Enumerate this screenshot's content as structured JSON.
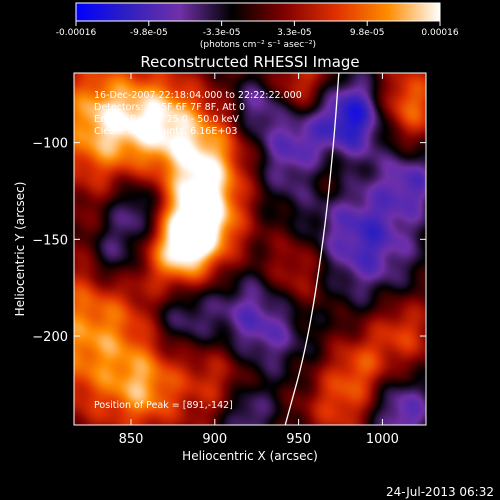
{
  "chart_data": {
    "type": "heatmap",
    "title": "Reconstructed RHESSI Image",
    "xlabel": "Heliocentric X (arcsec)",
    "ylabel": "Heliocentric Y (arcsec)",
    "xlim": [
      816,
      1026
    ],
    "ylim": [
      -246,
      -64
    ],
    "xticks": [
      850,
      900,
      950,
      1000
    ],
    "yticks": [
      -100,
      -150,
      -200
    ],
    "colorbar": {
      "ticks": [
        "-0.00016",
        "-9.8e-05",
        "-3.3e-05",
        "3.3e-05",
        "9.8e-05",
        "0.00016"
      ],
      "unit_label": "(photons cm⁻² s⁻¹ asec⁻²)",
      "range": [
        -0.00016,
        0.00016
      ],
      "colormap": [
        "#0000ff",
        "#3020c0",
        "#7030a8",
        "#000000",
        "#800000",
        "#e03000",
        "#ff8c00",
        "#ffffff"
      ]
    },
    "annotations": [
      "16-Dec-2007 22:18:04.000 to 22:22:22.000",
      "Detectors: 4F 5F 6F 7F 8F, Att 0",
      "Energy Range: 25.0 - 50.0 keV",
      "Clean.  Total counts: 6.16E+03"
    ],
    "peak_label": "Position of Peak = [891,-142]",
    "peak": [
      891,
      -142
    ],
    "limb_curve": [
      [
        942,
        -246
      ],
      [
        955,
        -205
      ],
      [
        965,
        -150
      ],
      [
        971,
        -100
      ],
      [
        974,
        -64
      ]
    ],
    "sources": [
      {
        "x": 835,
        "y": -90,
        "amp": 1.0,
        "s": 22
      },
      {
        "x": 827,
        "y": -200,
        "amp": 0.8,
        "s": 28
      },
      {
        "x": 895,
        "y": -110,
        "amp": 0.9,
        "s": 18
      },
      {
        "x": 891,
        "y": -142,
        "amp": 1.2,
        "s": 16
      },
      {
        "x": 878,
        "y": -158,
        "amp": 0.7,
        "s": 14
      },
      {
        "x": 870,
        "y": -88,
        "amp": 0.7,
        "s": 16
      },
      {
        "x": 858,
        "y": -228,
        "amp": 0.6,
        "s": 15
      },
      {
        "x": 905,
        "y": -222,
        "amp": 0.55,
        "s": 18
      },
      {
        "x": 948,
        "y": -168,
        "amp": 0.5,
        "s": 14
      },
      {
        "x": 968,
        "y": -115,
        "amp": 0.55,
        "s": 13
      },
      {
        "x": 952,
        "y": -72,
        "amp": 0.7,
        "s": 14
      },
      {
        "x": 1015,
        "y": -80,
        "amp": 0.7,
        "s": 14
      },
      {
        "x": 1012,
        "y": -198,
        "amp": 0.5,
        "s": 13
      },
      {
        "x": 975,
        "y": -235,
        "amp": 0.5,
        "s": 14
      },
      {
        "x": 988,
        "y": -215,
        "amp": 0.45,
        "s": 12
      },
      {
        "x": 955,
        "y": -100,
        "amp": -0.8,
        "s": 22
      },
      {
        "x": 985,
        "y": -85,
        "amp": -0.7,
        "s": 14
      },
      {
        "x": 990,
        "y": -150,
        "amp": -0.7,
        "s": 22
      },
      {
        "x": 925,
        "y": -195,
        "amp": -0.7,
        "s": 20
      },
      {
        "x": 855,
        "y": -135,
        "amp": -0.6,
        "s": 13
      },
      {
        "x": 880,
        "y": -190,
        "amp": -0.5,
        "s": 14
      },
      {
        "x": 918,
        "y": -240,
        "amp": -0.6,
        "s": 12
      },
      {
        "x": 1012,
        "y": -240,
        "amp": -0.6,
        "s": 14
      },
      {
        "x": 840,
        "y": -160,
        "amp": -0.5,
        "s": 12
      },
      {
        "x": 1018,
        "y": -120,
        "amp": -0.5,
        "s": 12
      },
      {
        "x": 925,
        "y": -80,
        "amp": -0.4,
        "s": 10
      }
    ]
  },
  "footer_timestamp": "24-Jul-2013 06:32"
}
